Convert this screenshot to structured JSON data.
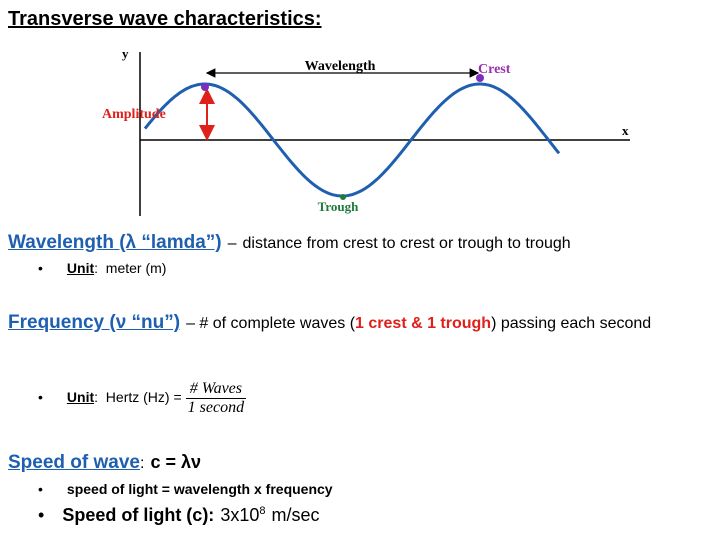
{
  "title": "Transverse wave characteristics:",
  "diagram": {
    "y_label": "y",
    "x_label": "x",
    "wavelength": "Wavelength",
    "crest": "Crest",
    "amplitude": "Amplitude",
    "trough": "Trough"
  },
  "wavelength": {
    "heading": "Wavelength (λ “lamda”)",
    "dash": "–",
    "text": "distance from crest to crest or trough to trough",
    "bullet": {
      "label": "Unit",
      "text": ":  meter (m)"
    }
  },
  "frequency": {
    "heading": "Frequency (ν “nu”)",
    "text_before": "– # of complete waves (",
    "highlight": "1 crest & 1 trough",
    "text_after": ") passing each second",
    "bullet": {
      "label": "Unit",
      "text": ":  Hertz (Hz) =",
      "numerator": "# Waves",
      "denominator": "1 second"
    }
  },
  "speed": {
    "heading": "Speed of wave",
    "colon": ":",
    "formula": "c = λν",
    "bullets": [
      {
        "text": "speed of light = wavelength x frequency"
      },
      {
        "label": "Speed of light (c):",
        "text": "3x10",
        "exponent": "8",
        "unit": "m/sec"
      }
    ]
  }
}
